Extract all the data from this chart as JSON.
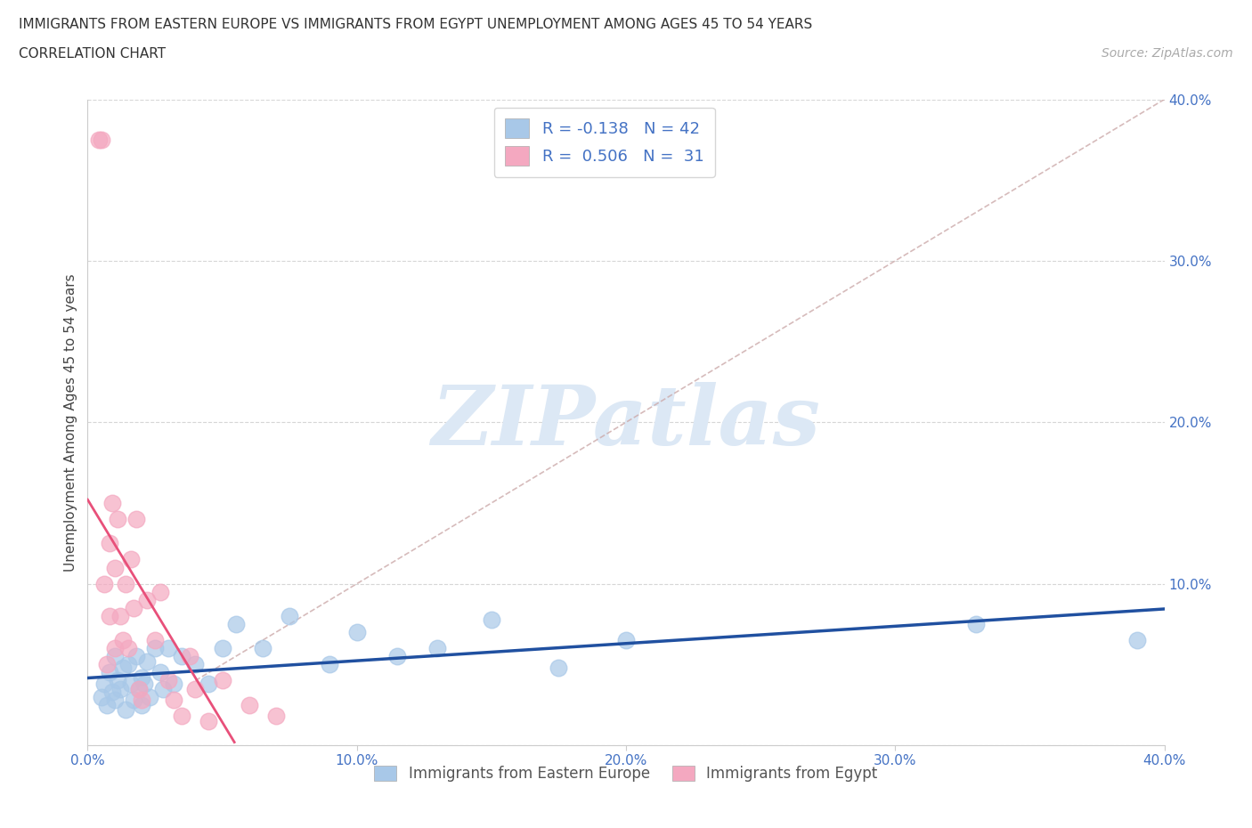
{
  "title_line1": "IMMIGRANTS FROM EASTERN EUROPE VS IMMIGRANTS FROM EGYPT UNEMPLOYMENT AMONG AGES 45 TO 54 YEARS",
  "title_line2": "CORRELATION CHART",
  "source_text": "Source: ZipAtlas.com",
  "ylabel": "Unemployment Among Ages 45 to 54 years",
  "xlim": [
    0.0,
    0.4
  ],
  "ylim": [
    0.0,
    0.4
  ],
  "xticks": [
    0.0,
    0.1,
    0.2,
    0.3,
    0.4
  ],
  "yticks": [
    0.0,
    0.1,
    0.2,
    0.3,
    0.4
  ],
  "xticklabels": [
    "0.0%",
    "10.0%",
    "20.0%",
    "30.0%",
    "40.0%"
  ],
  "yticklabels": [
    "",
    "10.0%",
    "20.0%",
    "30.0%",
    "40.0%"
  ],
  "legend_r1": "R = -0.138   N = 42",
  "legend_r2": "R =  0.506   N =  31",
  "legend_label1": "Immigrants from Eastern Europe",
  "legend_label2": "Immigrants from Egypt",
  "blue_color": "#a8c8e8",
  "pink_color": "#f4a8c0",
  "blue_line_color": "#2050a0",
  "pink_line_color": "#e8507a",
  "watermark_color": "#dce8f5",
  "background_color": "#ffffff",
  "tick_color": "#4472c4",
  "title_color": "#333333",
  "source_color": "#aaaaaa",
  "blue_x": [
    0.005,
    0.006,
    0.007,
    0.008,
    0.009,
    0.01,
    0.01,
    0.011,
    0.012,
    0.013,
    0.014,
    0.015,
    0.016,
    0.017,
    0.018,
    0.019,
    0.02,
    0.02,
    0.021,
    0.022,
    0.023,
    0.025,
    0.027,
    0.028,
    0.03,
    0.032,
    0.035,
    0.04,
    0.045,
    0.05,
    0.055,
    0.065,
    0.075,
    0.09,
    0.1,
    0.115,
    0.13,
    0.15,
    0.175,
    0.2,
    0.33,
    0.39
  ],
  "blue_y": [
    0.03,
    0.038,
    0.025,
    0.045,
    0.033,
    0.055,
    0.028,
    0.04,
    0.035,
    0.048,
    0.022,
    0.05,
    0.038,
    0.028,
    0.055,
    0.035,
    0.042,
    0.025,
    0.038,
    0.052,
    0.03,
    0.06,
    0.045,
    0.035,
    0.06,
    0.038,
    0.055,
    0.05,
    0.038,
    0.06,
    0.075,
    0.06,
    0.08,
    0.05,
    0.07,
    0.055,
    0.06,
    0.078,
    0.048,
    0.065,
    0.075,
    0.065
  ],
  "pink_x": [
    0.004,
    0.005,
    0.006,
    0.007,
    0.008,
    0.008,
    0.009,
    0.01,
    0.01,
    0.011,
    0.012,
    0.013,
    0.014,
    0.015,
    0.016,
    0.017,
    0.018,
    0.019,
    0.02,
    0.022,
    0.025,
    0.027,
    0.03,
    0.032,
    0.035,
    0.038,
    0.04,
    0.045,
    0.05,
    0.06,
    0.07
  ],
  "pink_y": [
    0.375,
    0.375,
    0.1,
    0.05,
    0.125,
    0.08,
    0.15,
    0.11,
    0.06,
    0.14,
    0.08,
    0.065,
    0.1,
    0.06,
    0.115,
    0.085,
    0.14,
    0.035,
    0.028,
    0.09,
    0.065,
    0.095,
    0.04,
    0.028,
    0.018,
    0.055,
    0.035,
    0.015,
    0.04,
    0.025,
    0.018
  ],
  "diag_line_color": "#ddaaaa",
  "diag_line_style": "--"
}
